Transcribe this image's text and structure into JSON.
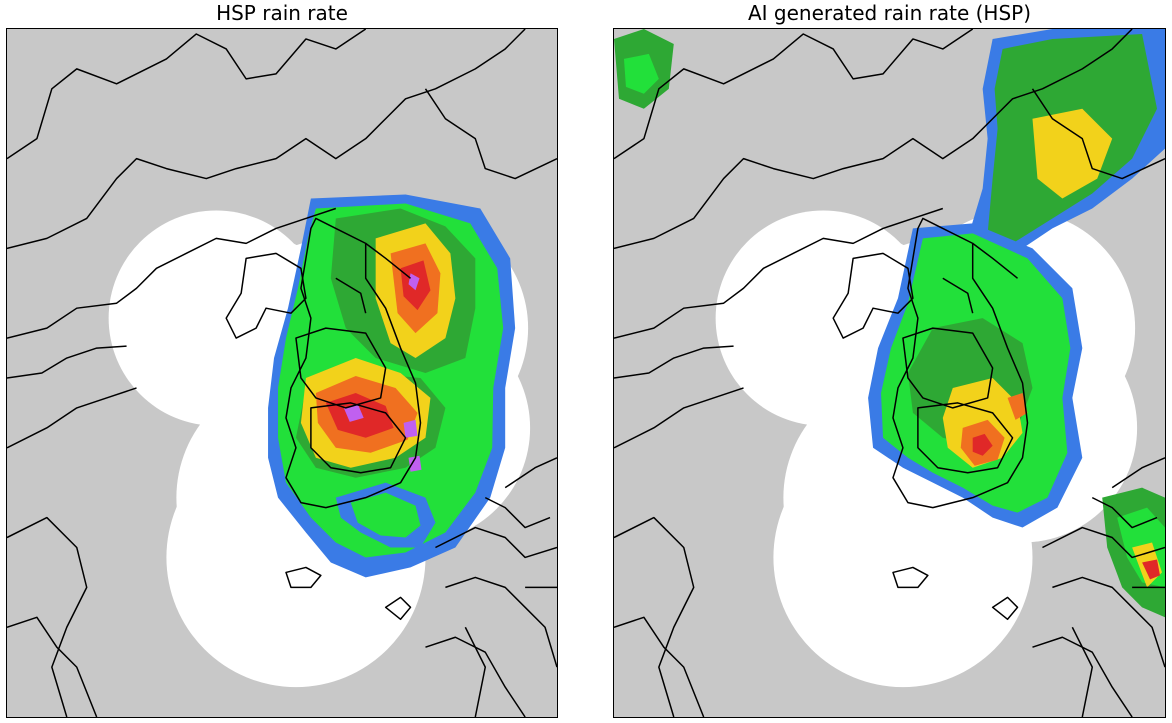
{
  "panels": [
    {
      "title": "HSP rain rate"
    },
    {
      "title": "AI generated rain rate (HSP)"
    }
  ],
  "colors": {
    "land": "#c8c8c8",
    "radar_coverage": "#ffffff",
    "boundary": "#000000",
    "rain_light": "#3a7be6",
    "rain_moderate": "#22e03a",
    "rain_moderate_dark": "#2ea834",
    "rain_heavy": "#f2d21b",
    "rain_intense": "#f07020",
    "rain_extreme": "#e02828",
    "rain_max": "#c060f0"
  }
}
